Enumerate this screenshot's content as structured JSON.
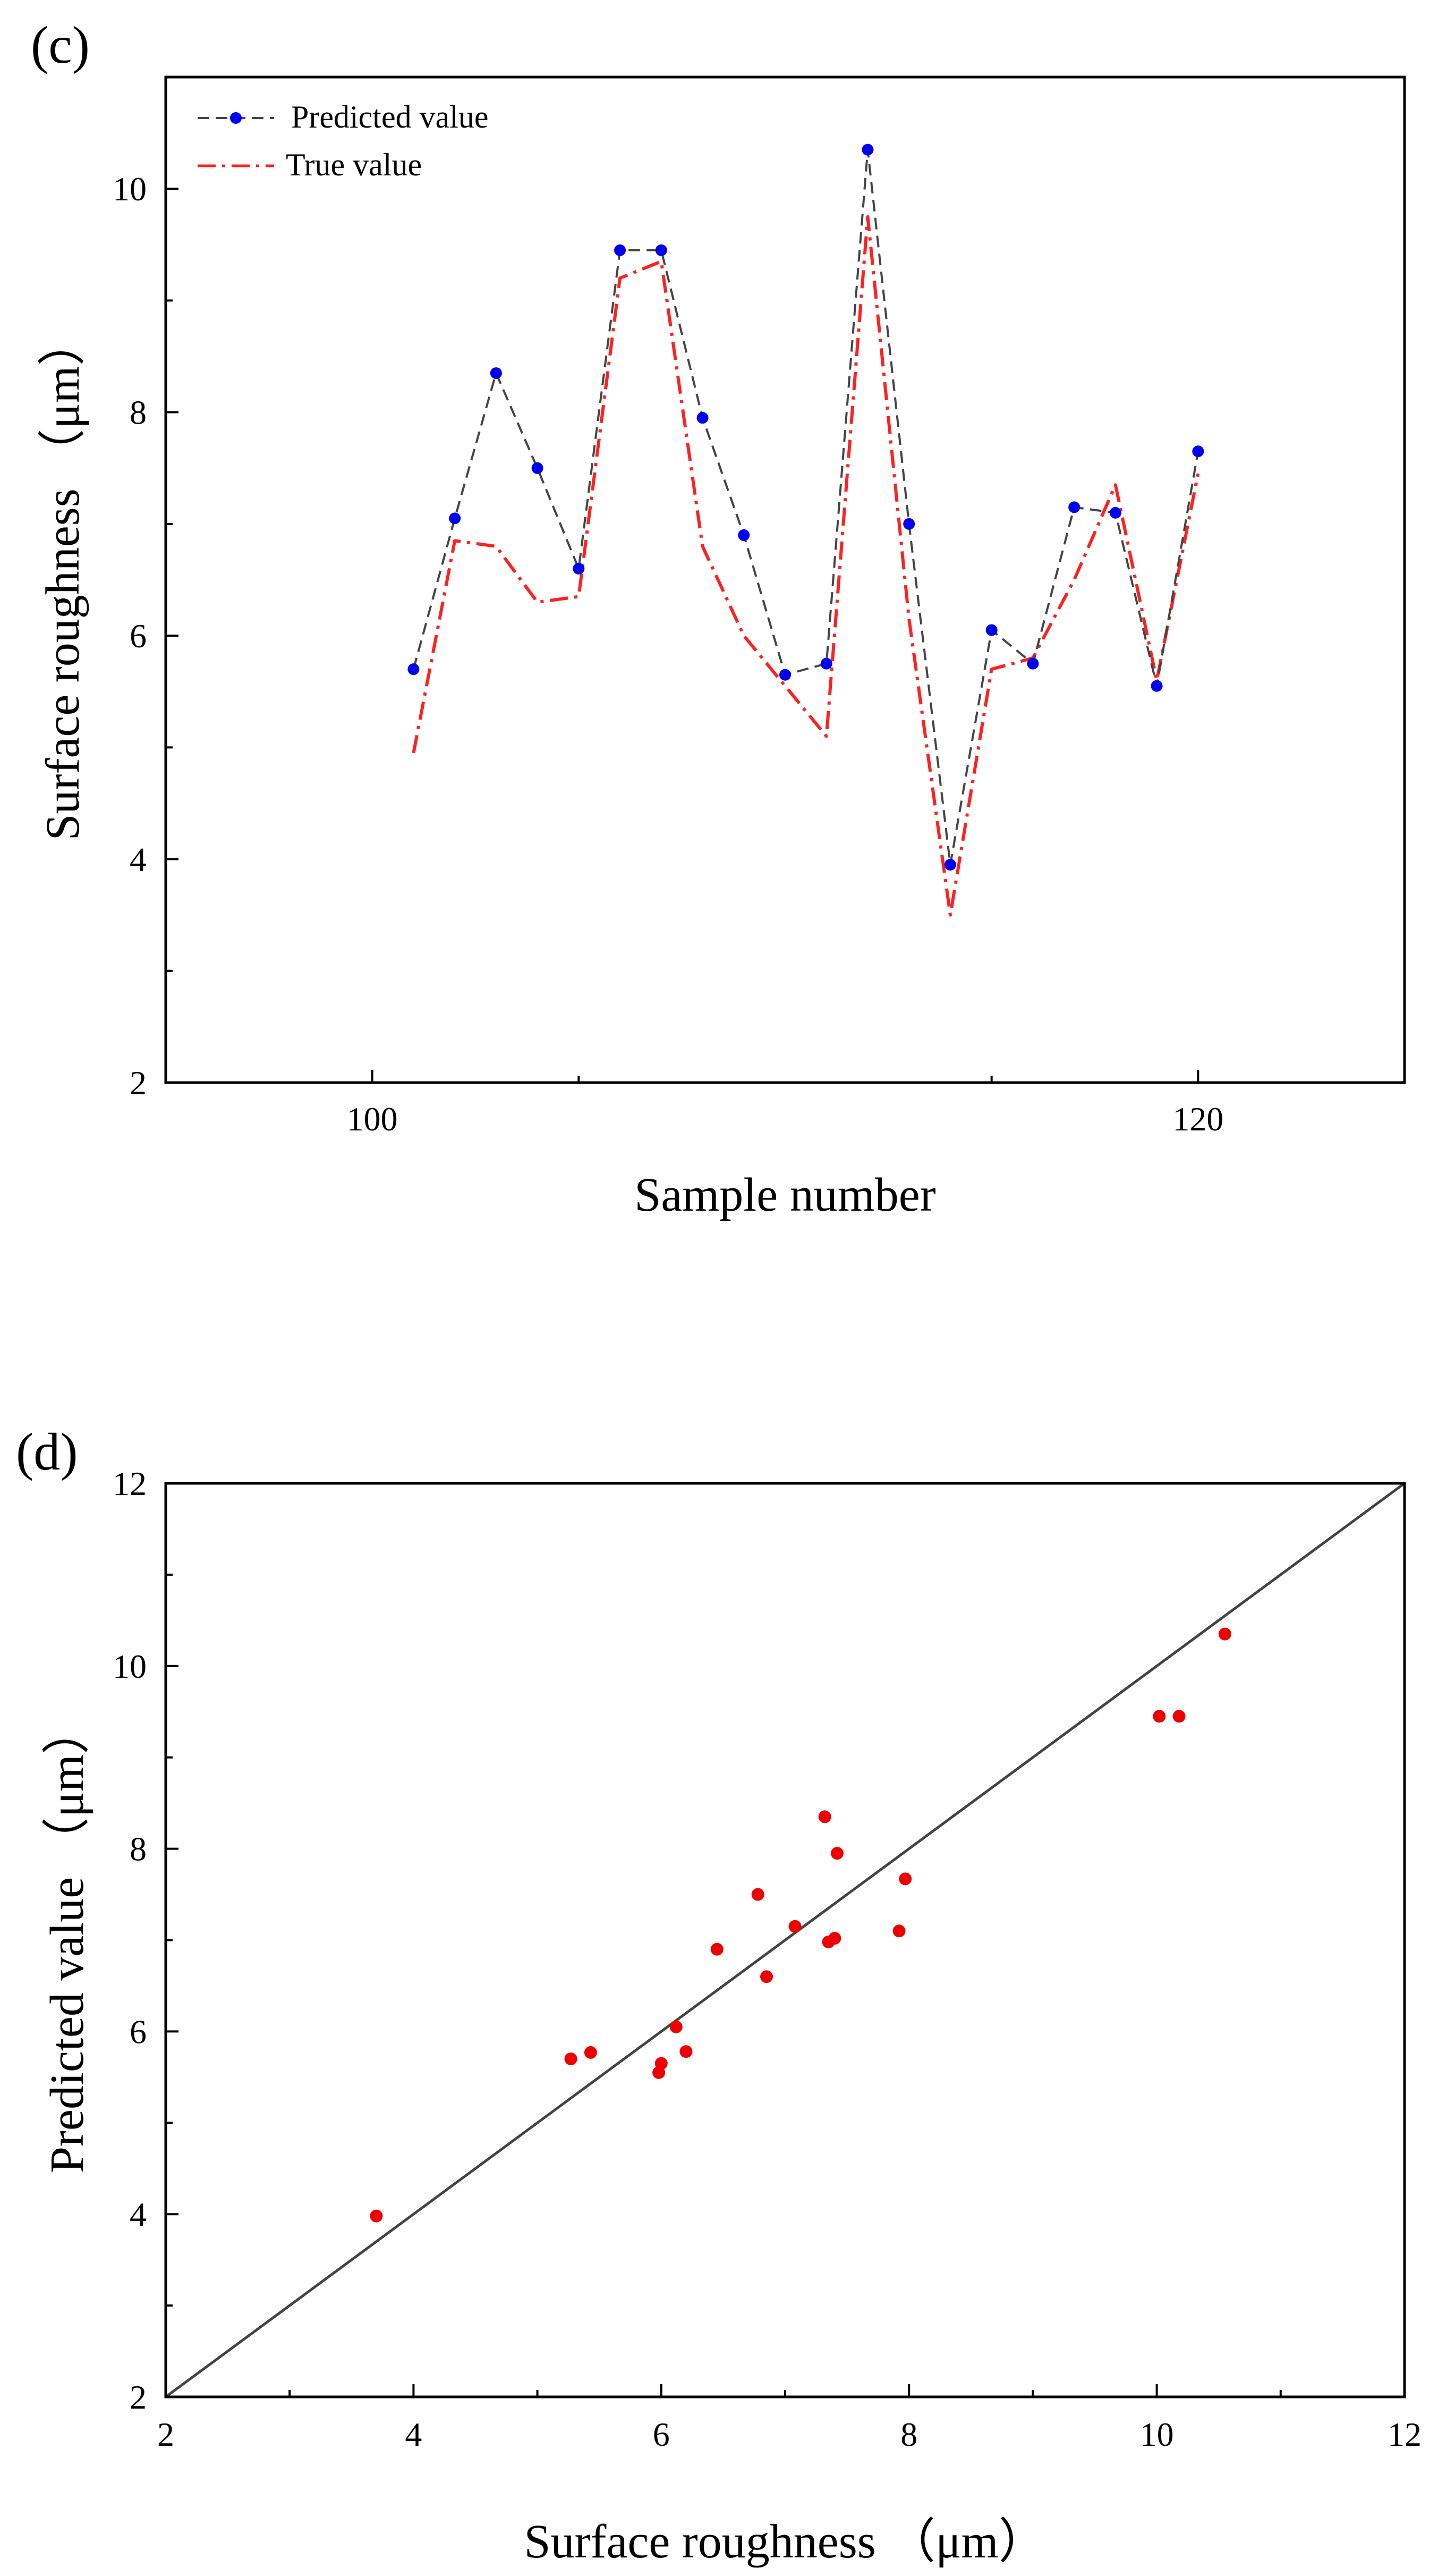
{
  "chart_data": [
    {
      "panel": "(c)",
      "type": "line",
      "title": "",
      "xlabel": "Sample number",
      "ylabel": "Surface roughness （μm）",
      "xlim": [
        95,
        125
      ],
      "ylim": [
        2,
        11
      ],
      "x_ticks": [
        100,
        120
      ],
      "y_ticks": [
        2,
        4,
        6,
        8,
        10
      ],
      "legend_position": "top-left",
      "x": [
        101,
        102,
        103,
        104,
        105,
        106,
        107,
        108,
        109,
        110,
        111,
        112,
        113,
        114,
        115,
        116,
        117,
        118,
        119,
        120
      ],
      "series": [
        {
          "name": "Predicted value",
          "style": "dashed-with-markers",
          "color": "#444444",
          "marker_color": "#0000ee",
          "values": [
            5.7,
            7.05,
            8.35,
            7.5,
            6.6,
            9.45,
            9.45,
            7.95,
            6.9,
            5.65,
            5.75,
            10.35,
            7.0,
            3.95,
            6.05,
            5.75,
            7.15,
            7.1,
            5.55,
            7.65
          ]
        },
        {
          "name": "True value",
          "style": "dash-dot",
          "color": "#ff2020",
          "values": [
            4.95,
            6.85,
            6.8,
            6.3,
            6.35,
            9.2,
            9.35,
            6.8,
            6.0,
            5.55,
            5.1,
            9.75,
            6.15,
            3.5,
            5.7,
            5.8,
            6.5,
            7.35,
            5.6,
            7.45
          ]
        }
      ]
    },
    {
      "panel": "(d)",
      "type": "scatter",
      "title": "",
      "xlabel": "Surface roughness （μm）",
      "ylabel": "Predicted value （μm）",
      "xlim": [
        2,
        12
      ],
      "ylim": [
        2,
        12
      ],
      "x_ticks": [
        2,
        4,
        6,
        8,
        10,
        12
      ],
      "y_ticks": [
        2,
        4,
        6,
        8,
        10,
        12
      ],
      "reference_line": {
        "from": [
          2,
          2
        ],
        "to": [
          12,
          12
        ],
        "color": "#444444"
      },
      "point_color": "#ee0000",
      "points": [
        {
          "x": 3.7,
          "y": 3.98
        },
        {
          "x": 5.27,
          "y": 5.7
        },
        {
          "x": 5.43,
          "y": 5.77
        },
        {
          "x": 5.98,
          "y": 5.55
        },
        {
          "x": 6.0,
          "y": 5.65
        },
        {
          "x": 6.12,
          "y": 6.05
        },
        {
          "x": 6.2,
          "y": 5.78
        },
        {
          "x": 6.45,
          "y": 6.9
        },
        {
          "x": 6.78,
          "y": 7.5
        },
        {
          "x": 6.85,
          "y": 6.6
        },
        {
          "x": 7.08,
          "y": 7.15
        },
        {
          "x": 7.32,
          "y": 8.35
        },
        {
          "x": 7.35,
          "y": 6.98
        },
        {
          "x": 7.4,
          "y": 7.02
        },
        {
          "x": 7.42,
          "y": 7.95
        },
        {
          "x": 7.92,
          "y": 7.1
        },
        {
          "x": 7.97,
          "y": 7.67
        },
        {
          "x": 10.02,
          "y": 9.45
        },
        {
          "x": 10.18,
          "y": 9.45
        },
        {
          "x": 10.55,
          "y": 10.35
        }
      ]
    }
  ]
}
